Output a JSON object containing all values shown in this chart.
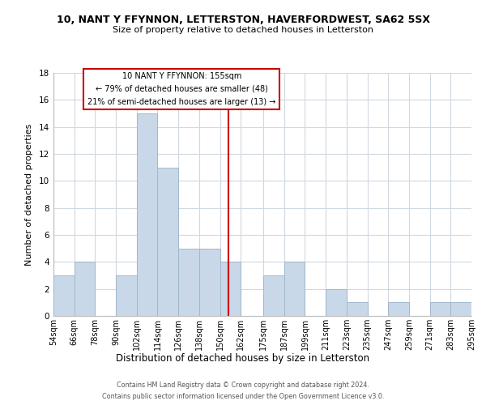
{
  "title": "10, NANT Y FFYNNON, LETTERSTON, HAVERFORDWEST, SA62 5SX",
  "subtitle": "Size of property relative to detached houses in Letterston",
  "xlabel": "Distribution of detached houses by size in Letterston",
  "ylabel": "Number of detached properties",
  "bar_color": "#c8d8e8",
  "bar_edge_color": "#a0b8cc",
  "bins": [
    54,
    66,
    78,
    90,
    102,
    114,
    126,
    138,
    150,
    162,
    175,
    187,
    199,
    211,
    223,
    235,
    247,
    259,
    271,
    283,
    295
  ],
  "bin_labels": [
    "54sqm",
    "66sqm",
    "78sqm",
    "90sqm",
    "102sqm",
    "114sqm",
    "126sqm",
    "138sqm",
    "150sqm",
    "162sqm",
    "175sqm",
    "187sqm",
    "199sqm",
    "211sqm",
    "223sqm",
    "235sqm",
    "247sqm",
    "259sqm",
    "271sqm",
    "283sqm",
    "295sqm"
  ],
  "values": [
    3,
    4,
    0,
    3,
    15,
    11,
    5,
    5,
    4,
    0,
    3,
    4,
    0,
    2,
    1,
    0,
    1,
    0,
    1,
    1
  ],
  "ylim": [
    0,
    18
  ],
  "yticks": [
    0,
    2,
    4,
    6,
    8,
    10,
    12,
    14,
    16,
    18
  ],
  "vline_x": 155,
  "vline_color": "#cc0000",
  "annotation_title": "10 NANT Y FFYNNON: 155sqm",
  "annotation_line1": "← 79% of detached houses are smaller (48)",
  "annotation_line2": "21% of semi-detached houses are larger (13) →",
  "annotation_box_color": "#ffffff",
  "annotation_box_edge": "#cc0000",
  "footer1": "Contains HM Land Registry data © Crown copyright and database right 2024.",
  "footer2": "Contains public sector information licensed under the Open Government Licence v3.0.",
  "background_color": "#ffffff",
  "grid_color": "#d0d8e0"
}
